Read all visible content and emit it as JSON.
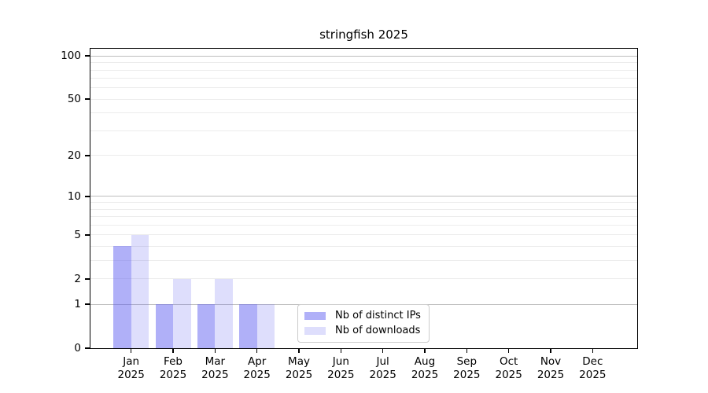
{
  "chart_data": {
    "type": "bar",
    "title": "stringfish 2025",
    "categories": [
      "Jan",
      "Feb",
      "Mar",
      "Apr",
      "May",
      "Jun",
      "Jul",
      "Aug",
      "Sep",
      "Oct",
      "Nov",
      "Dec"
    ],
    "category_year": "2025",
    "series": [
      {
        "name": "Nb of distinct IPs",
        "color": "rgba(90,90,240,0.48)",
        "values": [
          4,
          1,
          1,
          1,
          0,
          0,
          0,
          0,
          0,
          0,
          0,
          0
        ]
      },
      {
        "name": "Nb of downloads",
        "color": "rgba(90,90,240,0.20)",
        "values": [
          5,
          2,
          2,
          1,
          0,
          0,
          0,
          0,
          0,
          0,
          0,
          0
        ]
      }
    ],
    "y_axis": {
      "scale": "log1p",
      "min": 0,
      "max": 112.3,
      "tick_values": [
        0,
        1,
        2,
        5,
        10,
        20,
        50,
        100
      ],
      "tick_labels": [
        "0",
        "1",
        "2",
        "5",
        "10",
        "20",
        "50",
        "100"
      ],
      "major_gridlines": [
        1,
        10,
        100
      ],
      "minor_gridlines": [
        2,
        3,
        4,
        5,
        6,
        7,
        8,
        9,
        20,
        30,
        40,
        50,
        60,
        70,
        80,
        90
      ]
    },
    "x_axis": {
      "tick_count": 12
    },
    "legend": {
      "position": "bottom-center"
    },
    "colors": {
      "major_grid": "#bdbdbd",
      "minor_grid": "#ececec",
      "axis_border": "#000000",
      "background": "#ffffff",
      "text": "#000000"
    }
  }
}
